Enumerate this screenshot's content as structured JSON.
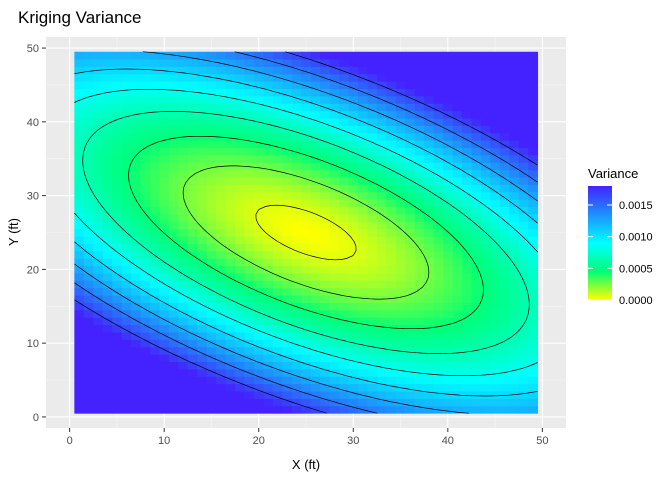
{
  "chart_data": {
    "type": "heatmap",
    "title": "Kriging Variance",
    "xlabel": "X (ft)",
    "ylabel": "Y (ft)",
    "x_ticks": [
      0,
      10,
      20,
      30,
      40,
      50
    ],
    "y_ticks": [
      0,
      10,
      20,
      30,
      40,
      50
    ],
    "xlim": [
      -2.5,
      52.5
    ],
    "ylim": [
      -1.5,
      51.5
    ],
    "data_extent": {
      "x": [
        0.5,
        49.5
      ],
      "y": [
        0.5,
        49.5
      ]
    },
    "grid": true,
    "panel_background": "#ebebeb",
    "legend": {
      "title": "Variance",
      "placement": "right",
      "ticks": [
        "0.0000",
        "0.0005",
        "0.0010",
        "0.0015"
      ],
      "tick_values": [
        0,
        0.0005,
        0.001,
        0.0015
      ],
      "range": [
        0,
        0.0018
      ],
      "colors": [
        "#ffff00",
        "#00ff77",
        "#00ffff",
        "#1e90ff",
        "#4422ff"
      ]
    },
    "variance_model": {
      "center": [
        25,
        25
      ],
      "major_axis_angle_deg": -29,
      "scale_major": 33,
      "scale_minor": 15,
      "max": 0.0018
    },
    "contours": [
      6e-05,
      0.00025,
      0.00045,
      0.00065,
      0.00085,
      0.00105,
      0.00125,
      0.00145,
      0.00165
    ]
  }
}
